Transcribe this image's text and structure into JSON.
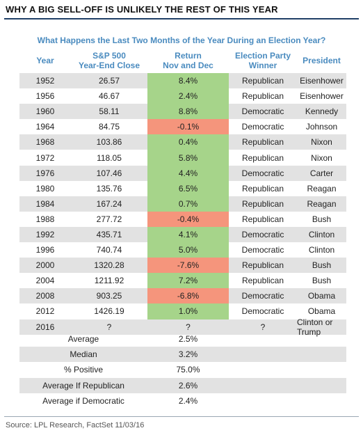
{
  "title": "WHY A BIG SELL-OFF IS UNLIKELY THE REST OF THIS YEAR",
  "subtitle": "What Happens the Last Two Months of the Year During an Election Year?",
  "headers": {
    "year": "Year",
    "close_line1": "S&P 500",
    "close_line2": "Year-End Close",
    "return_line1": "Return",
    "return_line2": "Nov and Dec",
    "party_line1": "Election Party",
    "party_line2": "Winner",
    "president": "President"
  },
  "colors": {
    "positive": "#a6d48a",
    "negative": "#f5957c",
    "header_text": "#4a8bbf",
    "stripe": "#e2e2e2"
  },
  "rows": [
    {
      "year": "1952",
      "close": "26.57",
      "ret": "8.4%",
      "sign": "pos",
      "party": "Republican",
      "president": "Eisenhower"
    },
    {
      "year": "1956",
      "close": "46.67",
      "ret": "2.4%",
      "sign": "pos",
      "party": "Republican",
      "president": "Eisenhower"
    },
    {
      "year": "1960",
      "close": "58.11",
      "ret": "8.8%",
      "sign": "pos",
      "party": "Democratic",
      "president": "Kennedy"
    },
    {
      "year": "1964",
      "close": "84.75",
      "ret": "-0.1%",
      "sign": "neg",
      "party": "Democratic",
      "president": "Johnson"
    },
    {
      "year": "1968",
      "close": "103.86",
      "ret": "0.4%",
      "sign": "pos",
      "party": "Republican",
      "president": "Nixon"
    },
    {
      "year": "1972",
      "close": "118.05",
      "ret": "5.8%",
      "sign": "pos",
      "party": "Republican",
      "president": "Nixon"
    },
    {
      "year": "1976",
      "close": "107.46",
      "ret": "4.4%",
      "sign": "pos",
      "party": "Democratic",
      "president": "Carter"
    },
    {
      "year": "1980",
      "close": "135.76",
      "ret": "6.5%",
      "sign": "pos",
      "party": "Republican",
      "president": "Reagan"
    },
    {
      "year": "1984",
      "close": "167.24",
      "ret": "0.7%",
      "sign": "pos",
      "party": "Republican",
      "president": "Reagan"
    },
    {
      "year": "1988",
      "close": "277.72",
      "ret": "-0.4%",
      "sign": "neg",
      "party": "Republican",
      "president": "Bush"
    },
    {
      "year": "1992",
      "close": "435.71",
      "ret": "4.1%",
      "sign": "pos",
      "party": "Democratic",
      "president": "Clinton"
    },
    {
      "year": "1996",
      "close": "740.74",
      "ret": "5.0%",
      "sign": "pos",
      "party": "Democratic",
      "president": "Clinton"
    },
    {
      "year": "2000",
      "close": "1320.28",
      "ret": "-7.6%",
      "sign": "neg",
      "party": "Republican",
      "president": "Bush"
    },
    {
      "year": "2004",
      "close": "1211.92",
      "ret": "7.2%",
      "sign": "pos",
      "party": "Republican",
      "president": "Bush"
    },
    {
      "year": "2008",
      "close": "903.25",
      "ret": "-6.8%",
      "sign": "neg",
      "party": "Democratic",
      "president": "Obama"
    },
    {
      "year": "2012",
      "close": "1426.19",
      "ret": "1.0%",
      "sign": "pos",
      "party": "Democratic",
      "president": "Obama"
    },
    {
      "year": "2016",
      "close": "?",
      "ret": "?",
      "sign": "none",
      "party": "?",
      "president": "Clinton or Trump"
    }
  ],
  "stats": [
    {
      "label": "Average",
      "value": "2.5%"
    },
    {
      "label": "Median",
      "value": "3.2%"
    },
    {
      "label": "% Positive",
      "value": "75.0%"
    },
    {
      "label": "Average If Republican",
      "value": "2.6%"
    },
    {
      "label": "Average if Democratic",
      "value": "2.4%"
    }
  ],
  "source": "Source: LPL Research, FactSet    11/03/16"
}
